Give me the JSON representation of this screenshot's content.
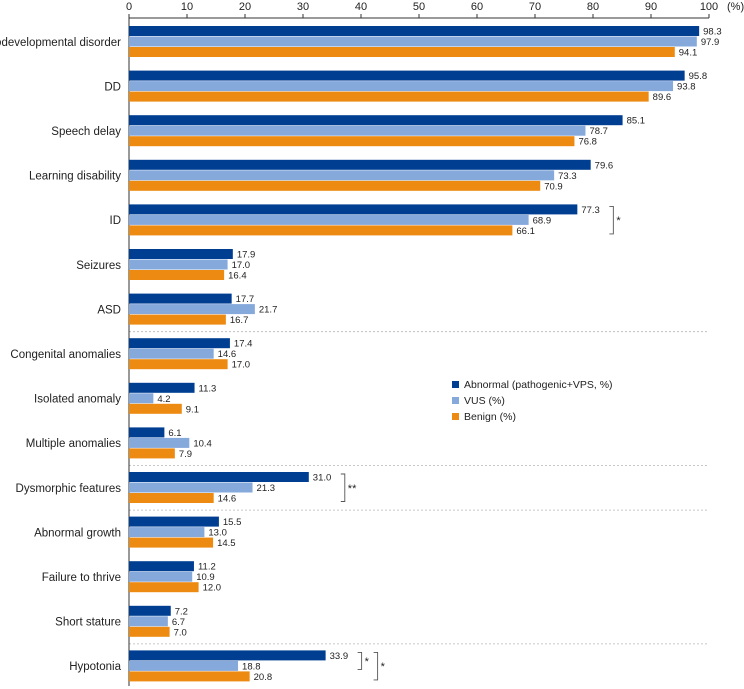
{
  "chart_data": {
    "type": "bar",
    "orientation": "horizontal",
    "xlim": [
      0,
      100
    ],
    "x_ticks": [
      "0",
      "10",
      "20",
      "30",
      "40",
      "50",
      "60",
      "70",
      "80",
      "90",
      "100"
    ],
    "x_unit_label": "(%)",
    "categories": [
      "Neurodevelopmental disorder",
      "DD",
      "Speech delay",
      "Learning disability",
      "ID",
      "Seizures",
      "ASD",
      "Congenital anomalies",
      "Isolated anomaly",
      "Multiple anomalies",
      "Dysmorphic features",
      "Abnormal growth",
      "Failure to thrive",
      "Short stature",
      "Hypotonia"
    ],
    "series": [
      {
        "name": "Abnormal (pathogenic+VPS, %)",
        "color": "#003e92",
        "values": [
          98.3,
          95.8,
          85.1,
          79.6,
          77.3,
          17.9,
          17.7,
          17.4,
          11.3,
          6.1,
          31.0,
          15.5,
          11.2,
          7.2,
          33.9
        ],
        "labels": [
          "98.3",
          "95.8",
          "85.1",
          "79.6",
          "77.3",
          "17.9",
          "17.7",
          "17.4",
          "11.3",
          "6.1",
          "31.0",
          "15.5",
          "11.2",
          "7.2",
          "33.9"
        ]
      },
      {
        "name": "VUS (%)",
        "color": "#86a9dc",
        "values": [
          97.9,
          93.8,
          78.7,
          73.3,
          68.9,
          17.0,
          21.7,
          14.6,
          4.2,
          10.4,
          21.3,
          13.0,
          10.9,
          6.7,
          18.8
        ],
        "labels": [
          "97.9",
          "93.8",
          "78.7",
          "73.3",
          "68.9",
          "17.0",
          "21.7",
          "14.6",
          "4.2",
          "10.4",
          "21.3",
          "13.0",
          "10.9",
          "6.7",
          "18.8"
        ]
      },
      {
        "name": "Benign (%)",
        "color": "#ed8a12",
        "values": [
          94.1,
          89.6,
          76.8,
          70.9,
          66.1,
          16.4,
          16.7,
          17.0,
          9.1,
          7.9,
          14.6,
          14.5,
          12.0,
          7.0,
          20.8
        ],
        "labels": [
          "94.1",
          "89.6",
          "76.8",
          "70.9",
          "66.1",
          "16.4",
          "16.7",
          "17.0",
          "9.1",
          "7.9",
          "14.6",
          "14.5",
          "12.0",
          "7.0",
          "20.8"
        ]
      }
    ],
    "group_separators_after": [
      "ASD",
      "Multiple anomalies",
      "Dysmorphic features",
      "Short stature"
    ],
    "significance": [
      {
        "category": "ID",
        "from_series": 0,
        "to_series": 2,
        "label": "*"
      },
      {
        "category": "Dysmorphic features",
        "from_series": 0,
        "to_series": 2,
        "label": "**"
      },
      {
        "category": "Hypotonia",
        "from_series": 0,
        "to_series": 1,
        "label": "*"
      },
      {
        "category": "Hypotonia",
        "from_series": 0,
        "to_series": 2,
        "label": "*"
      }
    ],
    "legend_position": "center-right"
  }
}
